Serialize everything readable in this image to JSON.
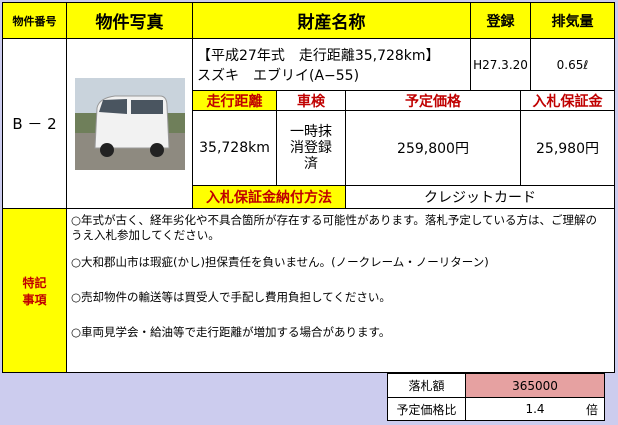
{
  "header": {
    "number": "物件番号",
    "photo": "物件写真",
    "name": "財産名称",
    "registration": "登録",
    "displacement": "排気量"
  },
  "item": {
    "number": "B － 2",
    "title": "【平成27年式　走行距離35,728km】",
    "model": "スズキ　エブリイ(A−55)",
    "registration": "H27.3.20",
    "displacement": "0.65ℓ",
    "mileage_label": "走行距離",
    "inspection_label": "車検",
    "price_label": "予定価格",
    "deposit_label": "入札保証金",
    "mileage": "35,728km",
    "inspection": "一時抹消登録済",
    "price": "259,800円",
    "deposit": "25,980円",
    "payment_label": "入札保証金納付方法",
    "payment": "クレジットカード"
  },
  "notes": {
    "label": "特記事項",
    "items": [
      "○年式が古く、経年劣化や不具合箇所が存在する可能性があります。落札予定している方は、ご理解のうえ入札参加してください。",
      "○大和郡山市は瑕疵(かし)担保責任を負いません。(ノークレーム・ノーリターン)",
      "○売却物件の輸送等は買受人で手配し費用負担してください。",
      "○車両見学会・給油等で走行距離が増加する場合があります。"
    ]
  },
  "result": {
    "winning_bid_label": "落札額",
    "winning_bid": "365000",
    "ratio_label": "予定価格比",
    "ratio": "1.4",
    "ratio_unit": "倍"
  }
}
